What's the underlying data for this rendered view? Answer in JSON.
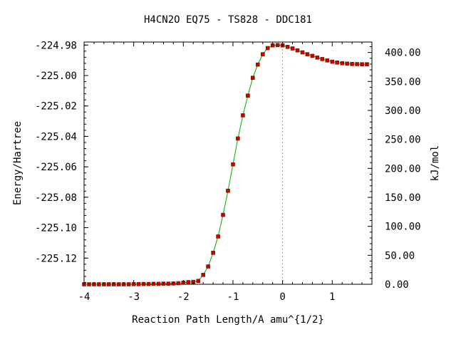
{
  "chart_data": {
    "type": "scatter",
    "title": "H4CN2O   EQ75 - TS828 - DDC181",
    "xlabel": "Reaction Path Length/A amu^{1/2}",
    "ylabel": "Energy/Hartree",
    "y2label": "kJ/mol",
    "xlim": [
      -4.0,
      1.8
    ],
    "ylim": [
      -225.1372,
      -224.978
    ],
    "y2lim": [
      0,
      418
    ],
    "xticks": [
      -4,
      -3,
      -2,
      -1,
      0,
      1
    ],
    "xtick_labels": [
      "-4",
      "-3",
      "-2",
      "-1",
      "0",
      "1"
    ],
    "yticks": [
      -224.98,
      -225.0,
      -225.02,
      -225.04,
      -225.06,
      -225.08,
      -225.1,
      -225.12
    ],
    "ytick_labels": [
      "-224.98",
      "-225.00",
      "-225.02",
      "-225.04",
      "-225.06",
      "-225.08",
      "-225.10",
      "-225.12"
    ],
    "y2ticks": [
      400,
      350,
      300,
      250,
      200,
      150,
      100,
      50,
      0
    ],
    "y2tick_labels": [
      "400.00",
      "350.00",
      "300.00",
      "250.00",
      "200.00",
      "150.00",
      "100.00",
      "50.00",
      "0.00"
    ],
    "ts_marker_x": 0.0,
    "grid": false,
    "series": [
      {
        "marker_color": "#cc0000",
        "line_color": "#00aa00",
        "x": [
          -4.0,
          -3.9,
          -3.8,
          -3.7,
          -3.6,
          -3.5,
          -3.4,
          -3.3,
          -3.2,
          -3.1,
          -3.0,
          -2.9,
          -2.8,
          -2.7,
          -2.6,
          -2.5,
          -2.4,
          -2.3,
          -2.2,
          -2.1,
          -2.0,
          -1.9,
          -1.8,
          -1.7,
          -1.6,
          -1.5,
          -1.4,
          -1.3,
          -1.2,
          -1.1,
          -1.0,
          -0.9,
          -0.8,
          -0.7,
          -0.6,
          -0.5,
          -0.4,
          -0.3,
          -0.2,
          -0.1,
          0.0,
          0.1,
          0.2,
          0.3,
          0.4,
          0.5,
          0.6,
          0.7,
          0.8,
          0.9,
          1.0,
          1.1,
          1.2,
          1.3,
          1.4,
          1.5,
          1.6,
          1.7
        ],
        "y": [
          -225.1372,
          -225.1372,
          -225.1372,
          -225.1372,
          -225.1372,
          -225.1372,
          -225.1372,
          -225.1372,
          -225.1372,
          -225.1372,
          -225.1371,
          -225.1371,
          -225.137,
          -225.137,
          -225.1369,
          -225.1369,
          -225.1368,
          -225.1368,
          -225.1367,
          -225.1365,
          -225.1362,
          -225.1358,
          -225.1356,
          -225.135,
          -225.131,
          -225.1255,
          -225.1165,
          -225.1058,
          -225.0916,
          -225.0757,
          -225.0584,
          -225.0414,
          -225.0262,
          -225.0132,
          -225.0015,
          -224.9928,
          -224.986,
          -224.982,
          -224.9802,
          -224.98,
          -224.9802,
          -224.9812,
          -224.9822,
          -224.9835,
          -224.9848,
          -224.986,
          -224.9871,
          -224.9882,
          -224.9892,
          -224.9901,
          -224.9909,
          -224.9915,
          -224.9919,
          -224.9922,
          -224.9924,
          -224.9925,
          -224.9926,
          -224.9926
        ]
      }
    ]
  }
}
